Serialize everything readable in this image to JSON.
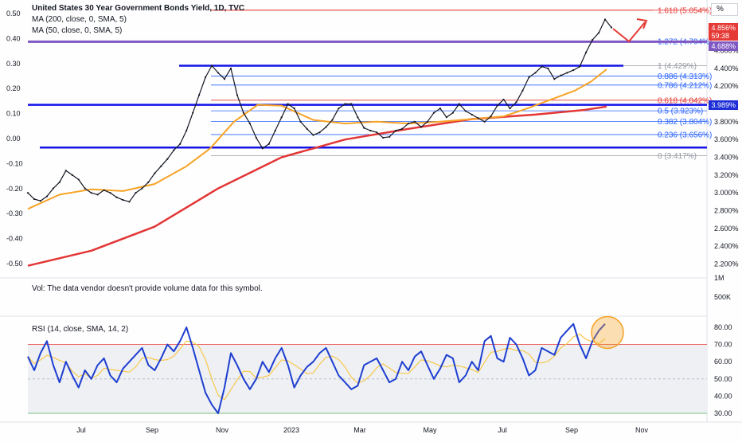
{
  "legend": {
    "title": "United States 30 Year Government Bonds Yield, 1D, TVC",
    "ma200": "MA (200, close, 0, SMA, 5)",
    "ma50": "MA (50, close, 0, SMA, 5)"
  },
  "volume_note": "Vol: The data vendor doesn't provide volume data for this symbol.",
  "rsi_title": "RSI (14, close, SMA, 14, 2)",
  "percent_button": "%",
  "price_badge": {
    "value": "4.856%",
    "countdown": "59:38",
    "color": "#e53935"
  },
  "ma_badge": {
    "value": "4.688%",
    "color": "#7e57c2"
  },
  "level_badge": {
    "value": "3.989%",
    "color": "#1e2fd8"
  },
  "colors": {
    "candle_up": "#131722",
    "ma50": "#f7a325",
    "ma200": "#e33636",
    "rsi": "#1e3fd0",
    "rsi_ma": "#f7c84a",
    "fib_blue": "#2962ff",
    "fib_red": "#e53935",
    "support": "#1414e6"
  },
  "chart_data": {
    "type": "line",
    "title": "United States 30 Year Government Bonds Yield, 1D, TVC",
    "x_ticks": [
      "Jul",
      "Sep",
      "Nov",
      "2023",
      "Mar",
      "May",
      "Jul",
      "Sep",
      "Nov"
    ],
    "right_axis_ticks": [
      "2.200%",
      "2.400%",
      "2.600%",
      "2.800%",
      "3.000%",
      "3.200%",
      "3.400%",
      "3.600%",
      "3.800%",
      "4.000%",
      "4.200%",
      "4.400%",
      "4.600%"
    ],
    "left_axis_ticks": [
      "-0.50",
      "-0.40",
      "-0.30",
      "-0.20",
      "-0.10",
      "0.00",
      "0.10",
      "0.20",
      "0.30",
      "0.40",
      "0.50"
    ],
    "volume_axis_ticks": [
      "1M",
      "500K"
    ],
    "rsi_axis_ticks": [
      "30.00",
      "40.00",
      "50.00",
      "60.00",
      "70.00",
      "80.00"
    ],
    "rsi_bands": [
      30,
      70
    ],
    "fib_levels": [
      {
        "label": "1.618 (5.054%)",
        "value": 5.054,
        "color": "red"
      },
      {
        "label": "1.272 (4.704%)",
        "value": 4.704,
        "color": "blue"
      },
      {
        "label": "1 (4.429%)",
        "value": 4.429,
        "color": "gray"
      },
      {
        "label": "0.886 (4.313%)",
        "value": 4.313,
        "color": "blue"
      },
      {
        "label": "0.786 (4.212%)",
        "value": 4.212,
        "color": "blue"
      },
      {
        "label": "0.618 (4.042%)",
        "value": 4.042,
        "color": "red"
      },
      {
        "label": "0.5 (3.923%)",
        "value": 3.923,
        "color": "blue"
      },
      {
        "label": "0.382 (3.804%)",
        "value": 3.804,
        "color": "blue"
      },
      {
        "label": "0.236 (3.656%)",
        "value": 3.656,
        "color": "blue"
      },
      {
        "label": "0 (3.417%)",
        "value": 3.417,
        "color": "gray"
      }
    ],
    "horizontal_levels": [
      4.7,
      4.43,
      3.99,
      3.51
    ],
    "price": {
      "name": "",
      "x": [
        0,
        8,
        16,
        24,
        32,
        40,
        48,
        56,
        64,
        72,
        80,
        88,
        96,
        104,
        112,
        120,
        128,
        136,
        144,
        152,
        160,
        168,
        176,
        184,
        192,
        200,
        208,
        216,
        224,
        232,
        240,
        248,
        256,
        264,
        272,
        280,
        288,
        296,
        304,
        312,
        320,
        328,
        336,
        344,
        352,
        360,
        368,
        376,
        384,
        392,
        400,
        408,
        416,
        424,
        432,
        440,
        448,
        456,
        464,
        472,
        480,
        488,
        496,
        504,
        512,
        520,
        528,
        536,
        544,
        552,
        560,
        568,
        576,
        584,
        592,
        600,
        608,
        616,
        624,
        632,
        640,
        648,
        656,
        664,
        672,
        680,
        688,
        696,
        704,
        712,
        720,
        728,
        736
      ],
      "values": [
        3.0,
        2.93,
        2.91,
        2.96,
        3.05,
        3.12,
        3.25,
        3.2,
        3.15,
        3.05,
        3.0,
        2.98,
        3.03,
        3.0,
        2.95,
        2.92,
        2.9,
        3.0,
        3.05,
        3.12,
        3.22,
        3.3,
        3.38,
        3.48,
        3.55,
        3.7,
        3.9,
        4.1,
        4.3,
        4.43,
        4.35,
        4.28,
        4.4,
        4.1,
        3.9,
        3.78,
        3.62,
        3.5,
        3.55,
        3.7,
        3.85,
        4.0,
        3.95,
        3.8,
        3.72,
        3.65,
        3.68,
        3.74,
        3.82,
        3.95,
        4.0,
        4.0,
        3.85,
        3.73,
        3.7,
        3.68,
        3.62,
        3.63,
        3.7,
        3.72,
        3.78,
        3.8,
        3.74,
        3.8,
        3.9,
        3.95,
        3.85,
        3.9,
        4.0,
        3.92,
        3.88,
        3.84,
        3.8,
        3.86,
        3.98,
        4.05,
        3.95,
        4.02,
        4.15,
        4.3,
        4.35,
        4.42,
        4.4,
        4.28,
        4.32,
        4.35,
        4.38,
        4.42,
        4.58,
        4.72,
        4.8,
        4.95,
        4.86
      ]
    },
    "ma50": {
      "name": "",
      "x": [
        0,
        40,
        80,
        120,
        160,
        200,
        230,
        260,
        290,
        320,
        360,
        400,
        440,
        480,
        520,
        560,
        600,
        630,
        660,
        690,
        710,
        730
      ],
      "values": [
        2.82,
        2.98,
        3.04,
        3.02,
        3.1,
        3.3,
        3.5,
        3.8,
        3.99,
        3.98,
        3.82,
        3.78,
        3.8,
        3.78,
        3.8,
        3.83,
        3.86,
        3.95,
        4.05,
        4.15,
        4.25,
        4.39
      ]
    },
    "ma200": {
      "name": "",
      "x": [
        0,
        80,
        160,
        240,
        320,
        400,
        480,
        560,
        640,
        700,
        730
      ],
      "values": [
        2.18,
        2.35,
        2.62,
        3.05,
        3.4,
        3.6,
        3.72,
        3.83,
        3.88,
        3.93,
        3.97
      ]
    },
    "rsi": {
      "name": "",
      "x": [
        0,
        8,
        16,
        24,
        32,
        40,
        48,
        56,
        64,
        72,
        80,
        88,
        96,
        104,
        112,
        120,
        128,
        136,
        144,
        152,
        160,
        168,
        176,
        184,
        192,
        200,
        208,
        216,
        224,
        232,
        240,
        248,
        256,
        264,
        272,
        280,
        288,
        296,
        304,
        312,
        320,
        328,
        336,
        344,
        352,
        360,
        368,
        376,
        384,
        392,
        400,
        408,
        416,
        424,
        432,
        440,
        448,
        456,
        464,
        472,
        480,
        488,
        496,
        504,
        512,
        520,
        528,
        536,
        544,
        552,
        560,
        568,
        576,
        584,
        592,
        600,
        608,
        616,
        624,
        632,
        640,
        648,
        656,
        664,
        672,
        680,
        688,
        696,
        704,
        712,
        720,
        728
      ],
      "values": [
        63,
        55,
        65,
        72,
        58,
        48,
        60,
        52,
        45,
        55,
        50,
        58,
        62,
        52,
        48,
        56,
        60,
        64,
        68,
        58,
        55,
        62,
        70,
        66,
        72,
        80,
        68,
        55,
        42,
        35,
        30,
        45,
        65,
        58,
        50,
        44,
        50,
        60,
        54,
        62,
        68,
        58,
        45,
        52,
        57,
        60,
        65,
        68,
        60,
        52,
        48,
        44,
        46,
        58,
        60,
        62,
        55,
        48,
        50,
        60,
        55,
        63,
        66,
        58,
        50,
        56,
        64,
        62,
        48,
        52,
        60,
        55,
        72,
        75,
        62,
        60,
        74,
        70,
        62,
        52,
        55,
        68,
        66,
        64,
        74,
        78,
        82,
        70,
        62,
        72,
        78,
        82
      ]
    }
  }
}
